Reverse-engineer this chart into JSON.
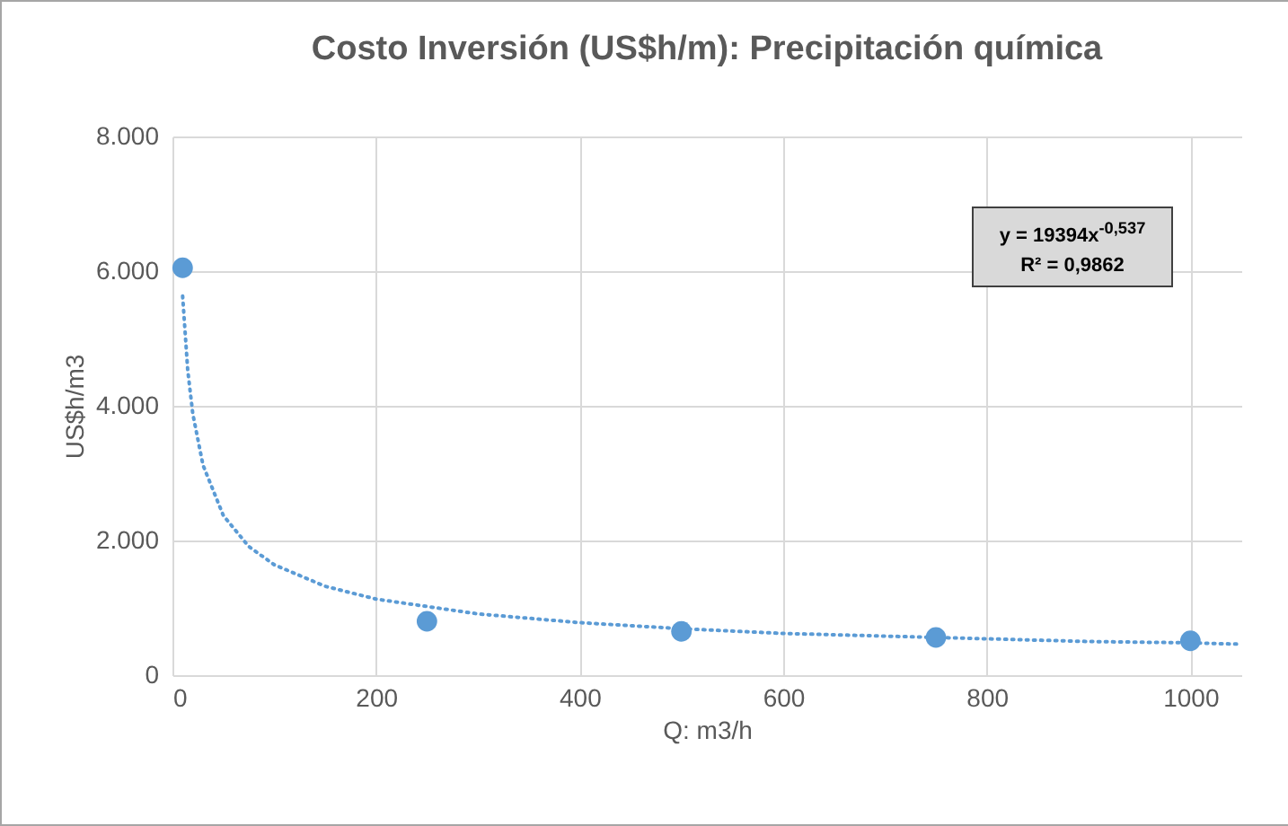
{
  "chart_data": {
    "type": "scatter",
    "title": "Costo Inversión (US$h/m):  Precipitación química",
    "xlabel": "Q: m3/h",
    "ylabel": "US$h/m3",
    "series": [
      {
        "color": "#5b9bd5",
        "marker": "circle",
        "x": [
          10,
          250,
          500,
          750,
          1000
        ],
        "values": [
          6050,
          800,
          650,
          560,
          510
        ]
      },
      {
        "type": "line",
        "color": "#5b9bd5",
        "line_style": "dotted",
        "x": [
          10,
          15,
          20,
          30,
          50,
          75,
          100,
          150,
          200,
          300,
          400,
          500,
          600,
          700,
          800,
          900,
          1000,
          1050
        ],
        "values": [
          5630,
          4530,
          3880,
          3120,
          2370,
          1910,
          1640,
          1320,
          1130,
          910,
          780,
          690,
          620,
          580,
          540,
          500,
          480,
          460
        ]
      }
    ],
    "xlim": [
      0,
      1050
    ],
    "xticks": [
      0,
      200,
      400,
      600,
      800,
      1000
    ],
    "ylim": [
      0,
      8000
    ],
    "yticks": [
      0,
      {
        "value": 2000,
        "label": "2.000"
      },
      {
        "value": 4000,
        "label": "4.000"
      },
      {
        "value": 6000,
        "label": "6.000"
      },
      {
        "value": 8000,
        "label": "8.000"
      }
    ],
    "grid": true,
    "annotations": [
      "y = 19394x$^{-0,537}$",
      "R² = 0,9862"
    ]
  }
}
